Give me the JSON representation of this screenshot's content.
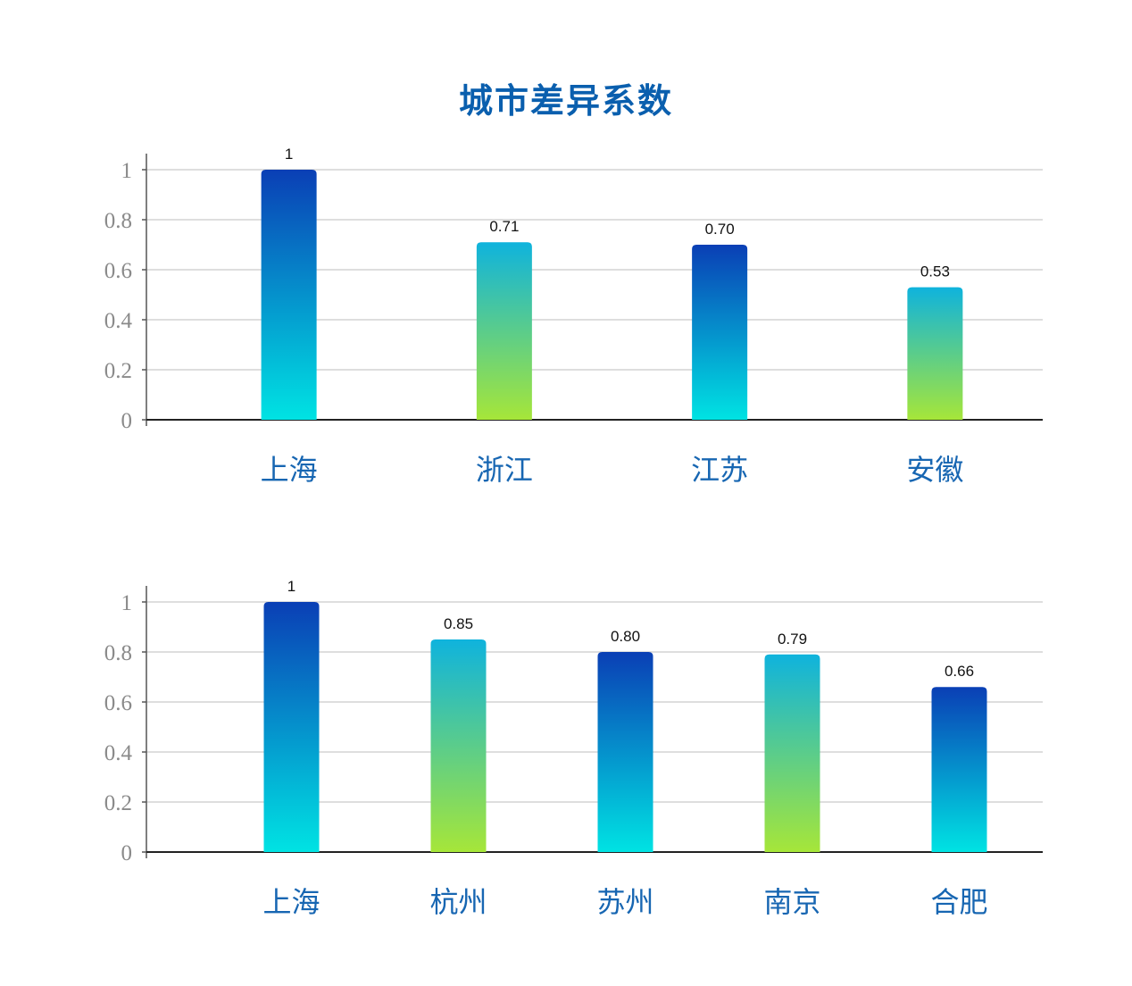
{
  "title": "城市差异系数",
  "colors": {
    "title": "#0a5fae",
    "category_text": "#1766b2",
    "blue_gradient": [
      "#0a3fb5",
      "#00e3e3"
    ],
    "green_gradient": [
      "#0fb3dd",
      "#a6e639"
    ]
  },
  "chart_data": [
    {
      "type": "bar",
      "categories": [
        "上海",
        "浙江",
        "江苏",
        "安徽"
      ],
      "values": [
        1,
        0.71,
        0.7,
        0.53
      ],
      "value_labels": [
        "1",
        "0.71",
        "0.70",
        "0.53"
      ],
      "bar_styles": [
        "blue",
        "green",
        "blue",
        "green"
      ],
      "ylim": [
        0,
        1
      ],
      "yticks": [
        "0",
        "0.2",
        "0.4",
        "0.6",
        "0.8",
        "1"
      ],
      "grid": true
    },
    {
      "type": "bar",
      "categories": [
        "上海",
        "杭州",
        "苏州",
        "南京",
        "合肥"
      ],
      "values": [
        1,
        0.85,
        0.8,
        0.79,
        0.66
      ],
      "value_labels": [
        "1",
        "0.85",
        "0.80",
        "0.79",
        "0.66"
      ],
      "bar_styles": [
        "blue",
        "green",
        "blue",
        "green",
        "blue"
      ],
      "ylim": [
        0,
        1
      ],
      "yticks": [
        "0",
        "0.2",
        "0.4",
        "0.6",
        "0.8",
        "1"
      ],
      "grid": true
    }
  ]
}
